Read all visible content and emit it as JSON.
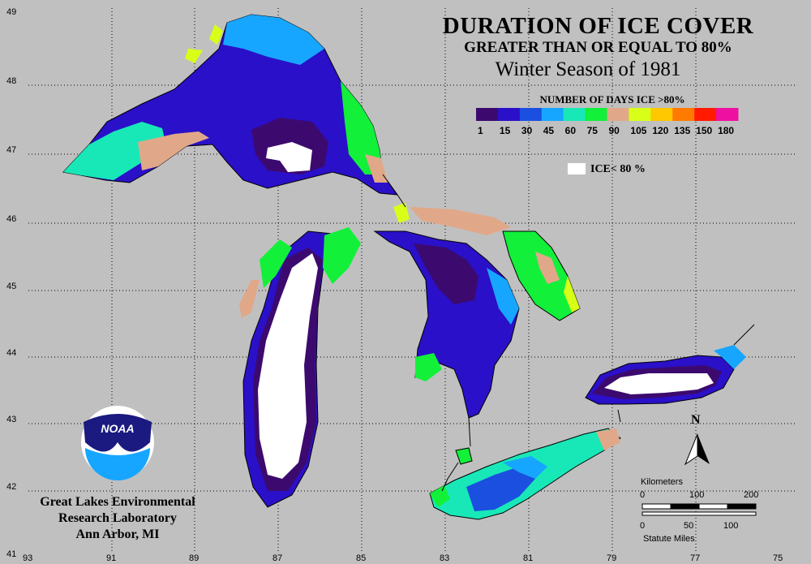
{
  "title": {
    "line1": "DURATION OF ICE COVER",
    "line2": "GREATER THAN OR EQUAL TO 80%",
    "line3": "Winter Season of 1981"
  },
  "legend": {
    "title": "NUMBER OF DAYS ICE >80%",
    "colors": [
      "#3c0a6e",
      "#2a10c8",
      "#1b4fe0",
      "#17a6ff",
      "#18e8b8",
      "#12f03a",
      "#e0a888",
      "#d8ff18",
      "#ffc800",
      "#ff7a00",
      "#ff1a00",
      "#ee10a0"
    ],
    "tick_labels": [
      "1",
      "15",
      "30",
      "45",
      "60",
      "75",
      "90",
      "105",
      "120",
      "135",
      "150",
      "180"
    ],
    "ice_below_label": "ICE< 80 %"
  },
  "axes": {
    "lat_labels": [
      "49",
      "48",
      "47",
      "46",
      "45",
      "44",
      "43",
      "42",
      "41"
    ],
    "lon_labels": [
      "93",
      "91",
      "89",
      "87",
      "85",
      "83",
      "81",
      "79",
      "77",
      "75"
    ]
  },
  "organization": {
    "line1": "Great Lakes Environmental",
    "line2": "Research Laboratory",
    "line3": "Ann Arbor, MI",
    "logo_text": "NOAA"
  },
  "scale_bar": {
    "km_label": "Kilometers",
    "km_ticks": [
      "0",
      "100",
      "200"
    ],
    "mi_ticks": [
      "0",
      "50",
      "100"
    ],
    "mi_label": "Statute Miles"
  },
  "north_arrow": {
    "label": "N"
  }
}
